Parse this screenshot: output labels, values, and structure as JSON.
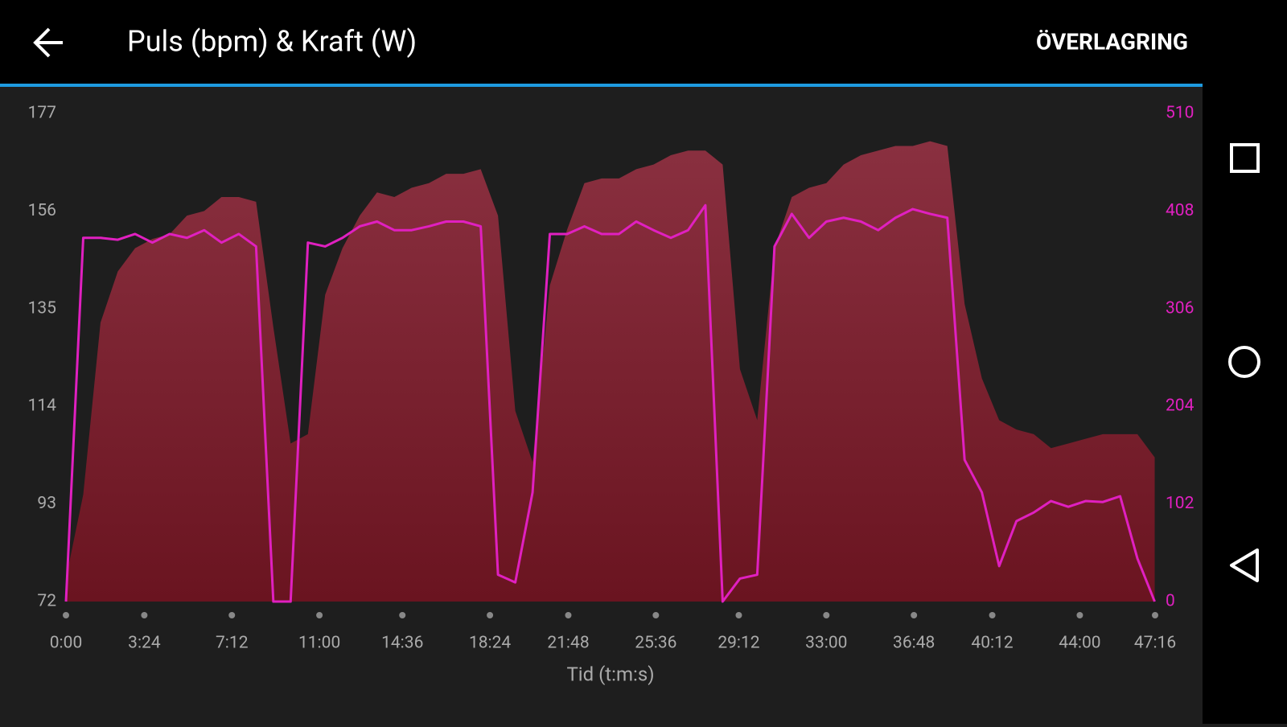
{
  "header": {
    "action": "ÖVERLAGRING"
  },
  "chart_data": {
    "type": "combo",
    "title": "Puls (bpm) & Kraft (W)",
    "x_label": "Tid (t:m:s)",
    "x": [
      0,
      45,
      90,
      135,
      180,
      225,
      270,
      315,
      360,
      405,
      450,
      495,
      540,
      585,
      630,
      675,
      720,
      765,
      810,
      855,
      900,
      945,
      990,
      1035,
      1080,
      1125,
      1170,
      1215,
      1260,
      1305,
      1350,
      1395,
      1440,
      1485,
      1530,
      1575,
      1620,
      1665,
      1710,
      1755,
      1800,
      1845,
      1890,
      1935,
      1980,
      2025,
      2070,
      2115,
      2160,
      2205,
      2250,
      2295,
      2340,
      2385,
      2430,
      2475,
      2520,
      2565,
      2610,
      2655,
      2700,
      2745,
      2790,
      2835
    ],
    "xlim": [
      0,
      2836
    ],
    "xticks": [
      {
        "value": 0,
        "label": "0:00"
      },
      {
        "value": 204,
        "label": "3:24"
      },
      {
        "value": 432,
        "label": "7:12"
      },
      {
        "value": 660,
        "label": "11:00"
      },
      {
        "value": 876,
        "label": "14:36"
      },
      {
        "value": 1104,
        "label": "18:24"
      },
      {
        "value": 1308,
        "label": "21:48"
      },
      {
        "value": 1536,
        "label": "25:36"
      },
      {
        "value": 1752,
        "label": "29:12"
      },
      {
        "value": 1980,
        "label": "33:00"
      },
      {
        "value": 2208,
        "label": "36:48"
      },
      {
        "value": 2412,
        "label": "40:12"
      },
      {
        "value": 2640,
        "label": "44:00"
      },
      {
        "value": 2836,
        "label": "47:16"
      }
    ],
    "ylim": [
      72,
      177
    ],
    "yticks": [
      72,
      93,
      114,
      135,
      156,
      177
    ],
    "y2lim": [
      0,
      510
    ],
    "y2ticks": [
      0,
      102,
      204,
      306,
      408,
      510
    ],
    "series": [
      {
        "style": "area",
        "color": "#8a3040",
        "color_bottom": "#6a1420",
        "values": [
          77,
          95,
          132,
          143,
          148,
          150,
          151,
          155,
          156,
          159,
          159,
          158,
          131,
          106,
          108,
          138,
          148,
          155,
          160,
          159,
          161,
          162,
          164,
          164,
          165,
          155,
          113,
          102,
          140,
          152,
          162,
          163,
          163,
          165,
          166,
          168,
          169,
          169,
          166,
          122,
          111,
          148,
          159,
          161,
          162,
          166,
          168,
          169,
          170,
          170,
          171,
          170,
          136,
          120,
          111,
          109,
          108,
          105,
          106,
          107,
          108,
          108,
          108,
          103
        ]
      },
      {
        "style": "line",
        "color": "#e020c0",
        "axis": "y2",
        "values": [
          0,
          380,
          380,
          378,
          384,
          375,
          384,
          380,
          388,
          375,
          384,
          371,
          0,
          0,
          375,
          371,
          380,
          392,
          397,
          388,
          388,
          392,
          397,
          397,
          392,
          28,
          20,
          114,
          384,
          384,
          392,
          384,
          384,
          397,
          388,
          380,
          388,
          414,
          0,
          24,
          28,
          371,
          405,
          380,
          397,
          401,
          397,
          388,
          401,
          410,
          405,
          401,
          148,
          114,
          37,
          84,
          93,
          105,
          99,
          105,
          104,
          110,
          45,
          0
        ]
      }
    ]
  }
}
